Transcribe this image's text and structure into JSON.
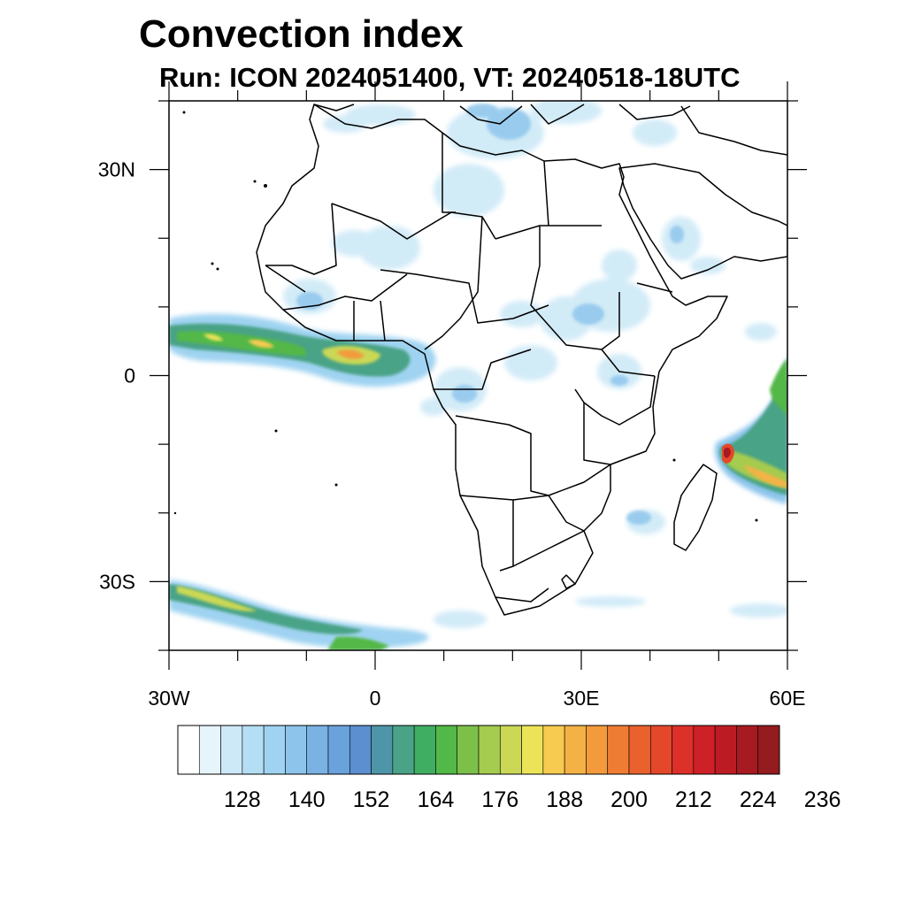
{
  "title": "Convection index",
  "subtitle": "Run: ICON 2024051400,  VT: 20240518-18UTC",
  "map": {
    "lon_range": [
      -30,
      60
    ],
    "lat_range": [
      -40,
      40
    ],
    "x_ticks": [
      {
        "lon": -30,
        "label": "30W"
      },
      {
        "lon": 0,
        "label": "0"
      },
      {
        "lon": 30,
        "label": "30E"
      },
      {
        "lon": 60,
        "label": "60E"
      }
    ],
    "y_ticks": [
      {
        "lat": 30,
        "label": "30N"
      },
      {
        "lat": 0,
        "label": "0"
      },
      {
        "lat": -30,
        "label": "30S"
      }
    ],
    "field_regions": [
      {
        "name": "west-africa-band",
        "max_class": "high",
        "lon": [
          -30,
          5
        ],
        "lat": [
          0,
          9
        ]
      },
      {
        "name": "gulf-of-guinea-core",
        "max_class": "high",
        "lon": [
          -8,
          -1
        ],
        "lat": [
          1,
          5
        ]
      },
      {
        "name": "madagascar-cyclone",
        "max_class": "extreme",
        "lon": [
          49,
          60
        ],
        "lat": [
          -18,
          -5
        ]
      },
      {
        "name": "southern-ocean-band",
        "max_class": "medium",
        "lon": [
          -30,
          -3
        ],
        "lat": [
          -40,
          -29
        ]
      }
    ]
  },
  "colorbar": {
    "colors": [
      "#ffffff",
      "#e6f4fb",
      "#cde9f7",
      "#b4def3",
      "#9fd3f1",
      "#8cc4ec",
      "#79b2e3",
      "#6aa2dc",
      "#5b8fcf",
      "#4f95a8",
      "#4aa386",
      "#3fae63",
      "#52b847",
      "#7cc049",
      "#a5cb4f",
      "#cad855",
      "#ede359",
      "#f6cb4f",
      "#f4b246",
      "#f39a3c",
      "#ee7d33",
      "#e9612d",
      "#e4472a",
      "#dc3029",
      "#ce2127",
      "#bd1b24",
      "#a81a21",
      "#941b1e"
    ],
    "labels": [
      "128",
      "140",
      "152",
      "164",
      "176",
      "188",
      "200",
      "212",
      "224",
      "236"
    ]
  }
}
